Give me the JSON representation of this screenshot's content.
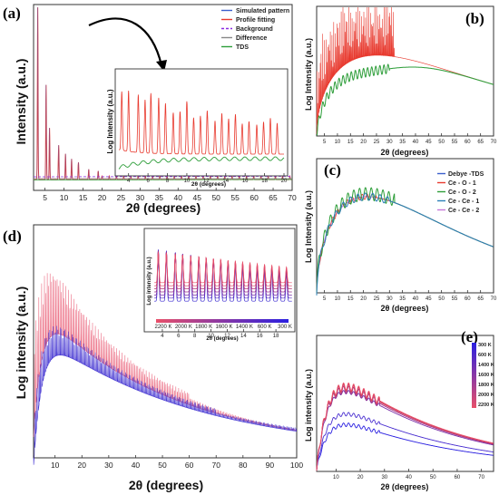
{
  "chart_data": [
    {
      "panel": "(a)",
      "type": "line",
      "xlabel": "2θ (degrees)",
      "ylabel": "Intensity (a.u.)",
      "xlim": [
        2,
        70
      ],
      "xticks": [
        5,
        10,
        15,
        20,
        25,
        30,
        35,
        40,
        45,
        50,
        55,
        60,
        65,
        70
      ],
      "legend": {
        "position": "top-right",
        "entries": [
          {
            "name": "Simulated pattern",
            "color": "#3a5fcd"
          },
          {
            "name": "Profile fitting",
            "color": "#e83a2f"
          },
          {
            "name": "Background",
            "color": "#8a2be2"
          },
          {
            "name": "Difference",
            "color": "#888888"
          },
          {
            "name": "TDS",
            "color": "#2e9e3a"
          }
        ]
      },
      "peaks": [
        [
          3.1,
          1.0
        ],
        [
          5.3,
          0.55
        ],
        [
          6.2,
          0.3
        ],
        [
          8.6,
          0.2
        ],
        [
          10.4,
          0.15
        ],
        [
          12.0,
          0.12
        ],
        [
          13.8,
          0.1
        ],
        [
          16.5,
          0.06
        ],
        [
          19.0,
          0.05
        ]
      ],
      "inset": {
        "xlabel": "2θ (degrees)",
        "ylabel": "Log Intensity (a.u.)",
        "xlim": [
          3,
          20
        ],
        "xticks": [
          4,
          6,
          8,
          10,
          12,
          14,
          16,
          18,
          20
        ]
      }
    },
    {
      "panel": "(b)",
      "type": "line",
      "xlabel": "2θ (degrees)",
      "ylabel": "Log Intensity (a.u.)",
      "xlim": [
        2,
        70
      ],
      "xticks": [
        5,
        10,
        15,
        20,
        25,
        30,
        35,
        40,
        45,
        50,
        55,
        60,
        65,
        70
      ],
      "series": [
        {
          "name": "",
          "color": "#e83a2f"
        },
        {
          "name": "",
          "color": "#2e9e3a"
        }
      ]
    },
    {
      "panel": "(c)",
      "type": "line",
      "xlabel": "2θ (degrees)",
      "ylabel": "Log Intensity (a.u.)",
      "xlim": [
        2,
        70
      ],
      "xticks": [
        5,
        10,
        15,
        20,
        25,
        30,
        35,
        40,
        45,
        50,
        55,
        60,
        65,
        70
      ],
      "legend": {
        "position": "top-right",
        "entries": [
          {
            "name": "Debye -TDS",
            "color": "#3a5fcd"
          },
          {
            "name": "Ce - O - 1",
            "color": "#e83a2f"
          },
          {
            "name": "Ce - O - 2",
            "color": "#2e9e3a"
          },
          {
            "name": "Ce - Ce - 1",
            "color": "#2b7fb8"
          },
          {
            "name": "Ce - Ce - 2",
            "color": "#c678d8"
          }
        ]
      }
    },
    {
      "panel": "(d)",
      "type": "line",
      "xlabel": "2θ (degrees)",
      "ylabel": "Log intensity (a.u.)",
      "xlim": [
        2,
        100
      ],
      "xticks": [
        10,
        20,
        30,
        40,
        50,
        60,
        70,
        80,
        90,
        100
      ],
      "inset": {
        "xlabel": "2θ (degrees)",
        "ylabel": "Log intensity (a.u.)",
        "xlim": [
          3,
          20
        ],
        "xticks": [
          4,
          6,
          8,
          10,
          12,
          14,
          16,
          18
        ],
        "temperature_bar": [
          "2200 K",
          "2000 K",
          "1800 K",
          "1600 K",
          "1400 K",
          "600 K",
          "300 K"
        ]
      }
    },
    {
      "panel": "(e)",
      "type": "line",
      "xlabel": "2θ (degrees)",
      "ylabel": "Log intensity (a.u.)",
      "xlim": [
        2,
        75
      ],
      "xticks": [
        10,
        20,
        30,
        40,
        50,
        60,
        70
      ],
      "temperature_legend": [
        "300 K",
        "600 K",
        "1400 K",
        "1600 K",
        "1800 K",
        "2000 K",
        "2200 K"
      ]
    }
  ]
}
